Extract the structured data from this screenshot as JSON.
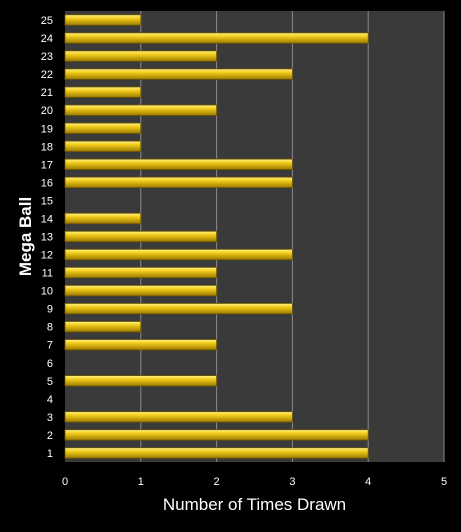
{
  "chart_data": {
    "type": "bar",
    "orientation": "horizontal",
    "categories": [
      "1",
      "2",
      "3",
      "4",
      "5",
      "6",
      "7",
      "8",
      "9",
      "10",
      "11",
      "12",
      "13",
      "14",
      "15",
      "16",
      "17",
      "18",
      "19",
      "20",
      "21",
      "22",
      "23",
      "24",
      "25"
    ],
    "values": [
      4,
      4,
      3,
      0,
      2,
      0,
      2,
      1,
      3,
      2,
      2,
      3,
      2,
      1,
      0,
      3,
      3,
      1,
      1,
      2,
      1,
      3,
      2,
      4,
      1
    ],
    "xlabel": "Number of Times Drawn",
    "ylabel": "Mega Ball",
    "xlim": [
      0,
      5
    ],
    "xticks": [
      "0",
      "1",
      "2",
      "3",
      "4",
      "5"
    ],
    "grid": "vertical",
    "legend": "none"
  },
  "colors": {
    "background": "#000000",
    "plot_area": "#3a3a3a",
    "bar_fill": "#f2cc1a",
    "bar_highlight": "#fff28a",
    "bar_shadow": "#9a7a00",
    "text": "#ffffff",
    "gridline": "#8a8a8a"
  }
}
